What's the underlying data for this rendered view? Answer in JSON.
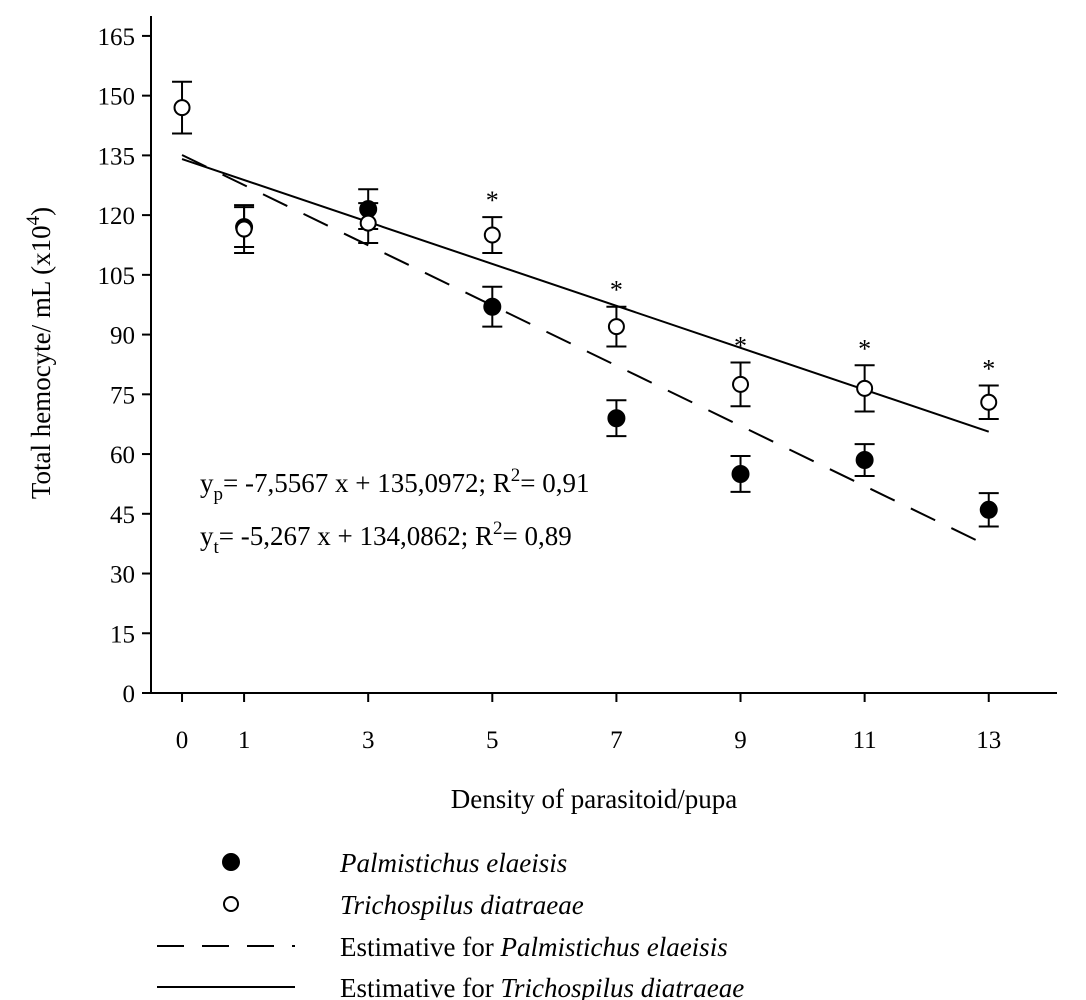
{
  "chart_data": {
    "type": "scatter",
    "xlabel": "Density of parasitoid/pupa",
    "ylabel": "Total hemocyte/ mL (x10",
    "ylabel_sup": "4",
    "ylabel_close": ")",
    "xlim": [
      -0.5,
      14.1
    ],
    "ylim": [
      0,
      170
    ],
    "x_ticks": [
      0,
      1,
      3,
      5,
      7,
      9,
      11,
      13
    ],
    "y_ticks": [
      0,
      15,
      30,
      45,
      60,
      75,
      90,
      105,
      120,
      135,
      150,
      165
    ],
    "series": [
      {
        "name": "Palmistichus elaeisis",
        "marker": "filled-circle",
        "x": [
          1,
          3,
          5,
          7,
          9,
          11,
          13
        ],
        "y": [
          117,
          121.5,
          97,
          69,
          55,
          58.5,
          46
        ],
        "error": [
          5,
          5,
          5,
          4.5,
          4.5,
          4,
          4.2
        ]
      },
      {
        "name": "Trichospilus diatraeae",
        "marker": "open-circle",
        "x": [
          0,
          1,
          3,
          5,
          7,
          9,
          11,
          13
        ],
        "y": [
          147,
          116.5,
          118,
          115,
          92,
          77.5,
          76.5,
          73
        ],
        "error": [
          6.5,
          6,
          5,
          4.5,
          5,
          5.5,
          5.8,
          4.2
        ]
      }
    ],
    "significance": {
      "symbol": "*",
      "x": [
        5,
        7,
        9,
        11,
        13
      ]
    },
    "fits": [
      {
        "name": "Estimative for Palmistichus elaeisis",
        "style": "dashed",
        "slope": -7.5567,
        "intercept": 135.0972,
        "x_range": [
          0,
          13
        ]
      },
      {
        "name": "Estimative for Trichospilus diatraeae",
        "style": "solid",
        "slope": -5.267,
        "intercept": 134.0862,
        "x_range": [
          0,
          13
        ]
      }
    ],
    "equations": [
      {
        "y": "y",
        "sub": "p",
        "rest": "= -7,5567 x + 135,0972; R",
        "sup": "2",
        "tail": "= 0,91"
      },
      {
        "y": "y",
        "sub": "t",
        "rest": "= -5,267 x + 134,0862; R",
        "sup": "2",
        "tail": "= 0,89"
      }
    ],
    "legend": {
      "placement": "bottom",
      "entries": [
        {
          "type": "filled-circle",
          "italic_text": "Palmistichus elaeisis",
          "prefix": ""
        },
        {
          "type": "open-circle",
          "italic_text": "Trichospilus diatraeae",
          "prefix": ""
        },
        {
          "type": "dashed-line",
          "prefix": "Estimative for ",
          "italic_text": "Palmistichus elaeisis"
        },
        {
          "type": "solid-line",
          "prefix": "Estimative for ",
          "italic_text": "Trichospilus diatraeae"
        }
      ]
    }
  }
}
